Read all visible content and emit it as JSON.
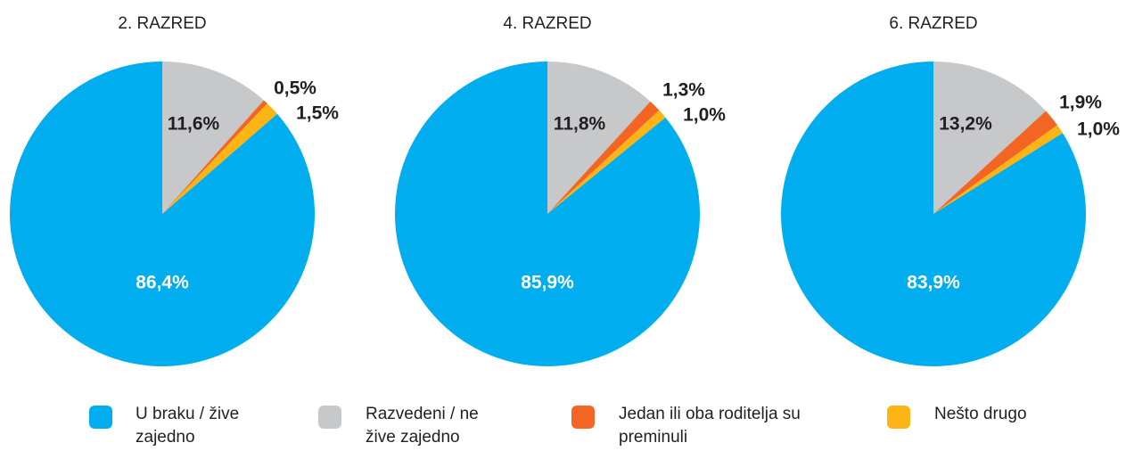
{
  "chart_data": [
    {
      "type": "pie",
      "title": "2. RAZRED",
      "values": [
        86.4,
        11.6,
        0.5,
        1.5
      ],
      "value_labels": [
        "86,4%",
        "11,6%",
        "0,5%",
        "1,5%"
      ]
    },
    {
      "type": "pie",
      "title": "4. RAZRED",
      "values": [
        85.9,
        11.8,
        1.3,
        1.0
      ],
      "value_labels": [
        "85,9%",
        "11,8%",
        "1,3%",
        "1,0%"
      ]
    },
    {
      "type": "pie",
      "title": "6. RAZRED",
      "values": [
        83.9,
        13.2,
        1.9,
        1.0
      ],
      "value_labels": [
        "83,9%",
        "13,2%",
        "1,9%",
        "1,0%"
      ]
    }
  ],
  "legend": {
    "categories": [
      "U braku / žive zajedno",
      "Razvedeni / ne žive zajedno",
      "Jedan ili oba roditelja su preminuli",
      "Nešto drugo"
    ],
    "colors": [
      "#00aeef",
      "#c7c8ca",
      "#f26522",
      "#fdb515"
    ]
  }
}
